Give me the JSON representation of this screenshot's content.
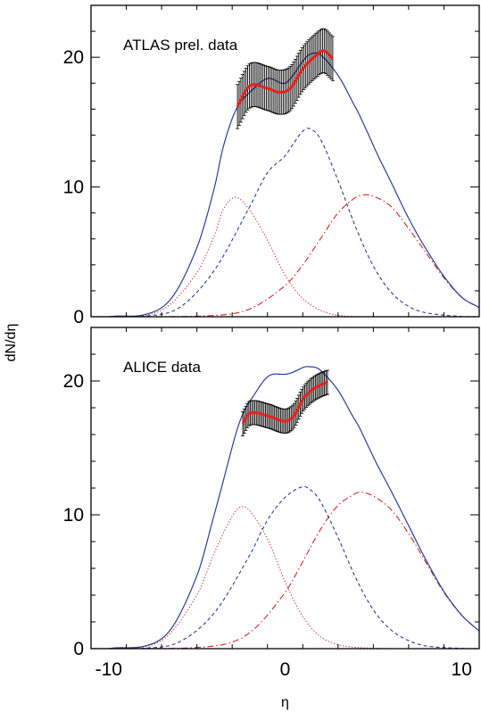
{
  "chart_data": [
    {
      "type": "line",
      "annotation": "ATLAS prel. data",
      "xlim": [
        -11,
        11
      ],
      "ylim": [
        0,
        24
      ],
      "x_ticks": [
        -10,
        0,
        10
      ],
      "y_ticks": [
        0,
        10,
        20
      ],
      "xlabel": "",
      "ylabel": "dN/dη",
      "grid": false,
      "curves": {
        "total": {
          "color": "#2b3f9a",
          "style": "solid"
        },
        "dashed": {
          "color": "#2b3f9a",
          "style": "dashed",
          "points": [
            [
              -10,
              0
            ],
            [
              -8,
              0.04
            ],
            [
              -6,
              0.7
            ],
            [
              -4,
              3.6
            ],
            [
              -2,
              8.5
            ],
            [
              -1,
              11.1
            ],
            [
              0,
              12.4
            ],
            [
              0.5,
              13.4
            ],
            [
              1,
              14.3
            ],
            [
              1.4,
              14.5
            ],
            [
              2,
              13.7
            ],
            [
              3,
              10.5
            ],
            [
              4,
              6.9
            ],
            [
              5,
              3.9
            ],
            [
              6,
              1.9
            ],
            [
              7,
              0.8
            ],
            [
              8,
              0.3
            ],
            [
              10,
              0.02
            ],
            [
              11,
              0.01
            ]
          ]
        },
        "dotted": {
          "color": "#d62728",
          "style": "dotted",
          "points": [
            [
              -10,
              0
            ],
            [
              -7,
              0.5
            ],
            [
              -5,
              3.4
            ],
            [
              -4,
              6.3
            ],
            [
              -3.5,
              8.3
            ],
            [
              -2.8,
              9.2
            ],
            [
              -2,
              8.2
            ],
            [
              -1,
              5.9
            ],
            [
              0,
              3.2
            ],
            [
              1,
              1.4
            ],
            [
              2,
              0.5
            ],
            [
              3,
              0.1
            ],
            [
              5,
              0
            ],
            [
              11,
              0
            ]
          ]
        },
        "dashdot": {
          "color": "#d62728",
          "style": "dashdot",
          "points": [
            [
              -10,
              0
            ],
            [
              -4,
              0.1
            ],
            [
              -2,
              0.6
            ],
            [
              0,
              2.4
            ],
            [
              1,
              4.0
            ],
            [
              2,
              6.0
            ],
            [
              3,
              8.0
            ],
            [
              4,
              9.2
            ],
            [
              4.5,
              9.4
            ],
            [
              5,
              9.3
            ],
            [
              6,
              8.5
            ],
            [
              7,
              6.8
            ],
            [
              8,
              4.9
            ],
            [
              9,
              3.0
            ],
            [
              10,
              1.5
            ],
            [
              11,
              0.7
            ]
          ]
        }
      },
      "fit": {
        "color": "#e8211c",
        "x": [
          -2.7,
          2.7
        ],
        "values": [
          [
            -2.7,
            16.2
          ],
          [
            -2,
            17.8
          ],
          [
            -1,
            17.6
          ],
          [
            -0.3,
            17.3
          ],
          [
            0.3,
            17.6
          ],
          [
            1,
            19.1
          ],
          [
            1.8,
            20.2
          ],
          [
            2.2,
            20.5
          ],
          [
            2.7,
            19.9
          ]
        ]
      },
      "data_points": {
        "color": "#000000",
        "x": [
          -2.7,
          2.7
        ],
        "values": [
          [
            -2.7,
            16.2
          ],
          [
            -2,
            17.8
          ],
          [
            -1,
            17.6
          ],
          [
            -0.3,
            17.3
          ],
          [
            0.3,
            17.6
          ],
          [
            1,
            19.1
          ],
          [
            1.8,
            20.2
          ],
          [
            2.2,
            20.5
          ],
          [
            2.7,
            19.9
          ]
        ],
        "error": 1.7
      }
    },
    {
      "type": "line",
      "annotation": "ALICE data",
      "xlim": [
        -11,
        11
      ],
      "ylim": [
        0,
        24
      ],
      "x_ticks": [
        -10,
        0,
        10
      ],
      "y_ticks": [
        0,
        10,
        20
      ],
      "xlabel": "η",
      "ylabel": "",
      "grid": false,
      "curves": {
        "total": {
          "color": "#2b3f9a",
          "style": "solid"
        },
        "dashed": {
          "color": "#2b3f9a",
          "style": "dashed",
          "points": [
            [
              -10,
              0
            ],
            [
              -8,
              0.03
            ],
            [
              -6,
              0.5
            ],
            [
              -4,
              2.7
            ],
            [
              -2,
              7.0
            ],
            [
              -1,
              9.6
            ],
            [
              0,
              11.3
            ],
            [
              1,
              12.1
            ],
            [
              1.5,
              11.8
            ],
            [
              2,
              11.0
            ],
            [
              3,
              8.3
            ],
            [
              4,
              5.3
            ],
            [
              5,
              2.9
            ],
            [
              6,
              1.4
            ],
            [
              7,
              0.6
            ],
            [
              8,
              0.2
            ],
            [
              10,
              0.02
            ],
            [
              11,
              0.01
            ]
          ]
        },
        "dotted": {
          "color": "#d62728",
          "style": "dotted",
          "points": [
            [
              -10,
              0
            ],
            [
              -7,
              0.6
            ],
            [
              -5,
              4.0
            ],
            [
              -4,
              7.2
            ],
            [
              -3,
              9.9
            ],
            [
              -2.5,
              10.6
            ],
            [
              -2,
              10.3
            ],
            [
              -1,
              8.2
            ],
            [
              0,
              5.0
            ],
            [
              1,
              2.4
            ],
            [
              2,
              0.9
            ],
            [
              3,
              0.3
            ],
            [
              4,
              0.1
            ],
            [
              6,
              0
            ],
            [
              11,
              0
            ]
          ]
        },
        "dashdot": {
          "color": "#d62728",
          "style": "dashdot",
          "points": [
            [
              -10,
              0
            ],
            [
              -4,
              0.2
            ],
            [
              -2,
              1.2
            ],
            [
              0,
              4.2
            ],
            [
              1,
              6.5
            ],
            [
              2,
              8.9
            ],
            [
              3,
              10.7
            ],
            [
              4,
              11.6
            ],
            [
              4.3,
              11.7
            ],
            [
              5,
              11.4
            ],
            [
              6,
              10.4
            ],
            [
              7,
              8.6
            ],
            [
              8,
              6.4
            ],
            [
              9,
              4.2
            ],
            [
              10,
              2.5
            ],
            [
              11,
              1.3
            ]
          ]
        }
      },
      "fit": {
        "color": "#e8211c",
        "x": [
          -2.4,
          2.4
        ],
        "values": [
          [
            -2.4,
            16.8
          ],
          [
            -2,
            17.6
          ],
          [
            -1,
            17.4
          ],
          [
            0,
            17.0
          ],
          [
            0.5,
            17.4
          ],
          [
            1,
            18.6
          ],
          [
            1.5,
            19.3
          ],
          [
            2,
            19.7
          ],
          [
            2.4,
            19.9
          ]
        ]
      },
      "data_points": {
        "color": "#000000",
        "x": [
          -2.4,
          2.4
        ],
        "values": [
          [
            -2.4,
            16.8
          ],
          [
            -2,
            17.6
          ],
          [
            -1,
            17.4
          ],
          [
            0,
            17.0
          ],
          [
            0.5,
            17.4
          ],
          [
            1,
            18.6
          ],
          [
            1.5,
            19.3
          ],
          [
            2,
            19.7
          ],
          [
            2.4,
            19.9
          ]
        ],
        "error": 0.9
      }
    }
  ]
}
